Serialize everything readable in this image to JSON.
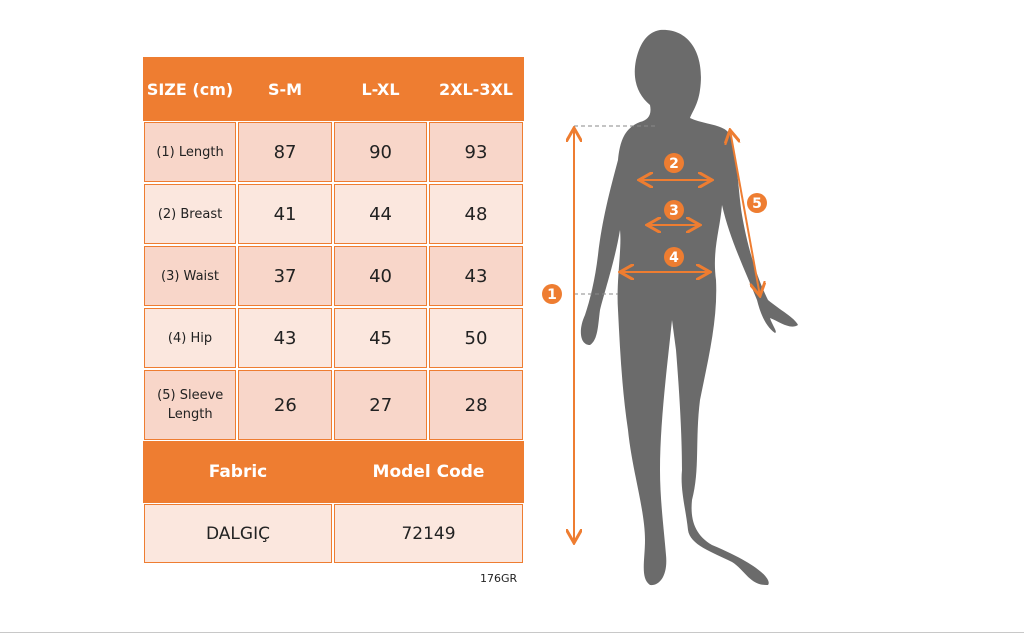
{
  "table": {
    "header": [
      "SIZE (cm)",
      "S-M",
      "L-XL",
      "2XL-3XL"
    ],
    "rows": [
      {
        "label": "(1) Length",
        "values": [
          "87",
          "90",
          "93"
        ]
      },
      {
        "label": "(2) Breast",
        "values": [
          "41",
          "44",
          "48"
        ]
      },
      {
        "label": "(3) Waist",
        "values": [
          "37",
          "40",
          "43"
        ]
      },
      {
        "label": "(4) Hip",
        "values": [
          "43",
          "45",
          "50"
        ]
      },
      {
        "label": "(5) Sleeve Length",
        "values": [
          "26",
          "27",
          "28"
        ]
      }
    ],
    "fabric_label": "Fabric",
    "model_code_label": "Model Code",
    "fabric_value": "DALGIÇ",
    "model_code_value": "72149"
  },
  "product_code": "176GR",
  "figure": {
    "markers": [
      "1",
      "2",
      "3",
      "4",
      "5"
    ]
  },
  "colors": {
    "accent": "#ee7d31",
    "row_dark": "#f8d6c9",
    "row_light": "#fbe7de",
    "silhouette": "#6b6b6b"
  }
}
